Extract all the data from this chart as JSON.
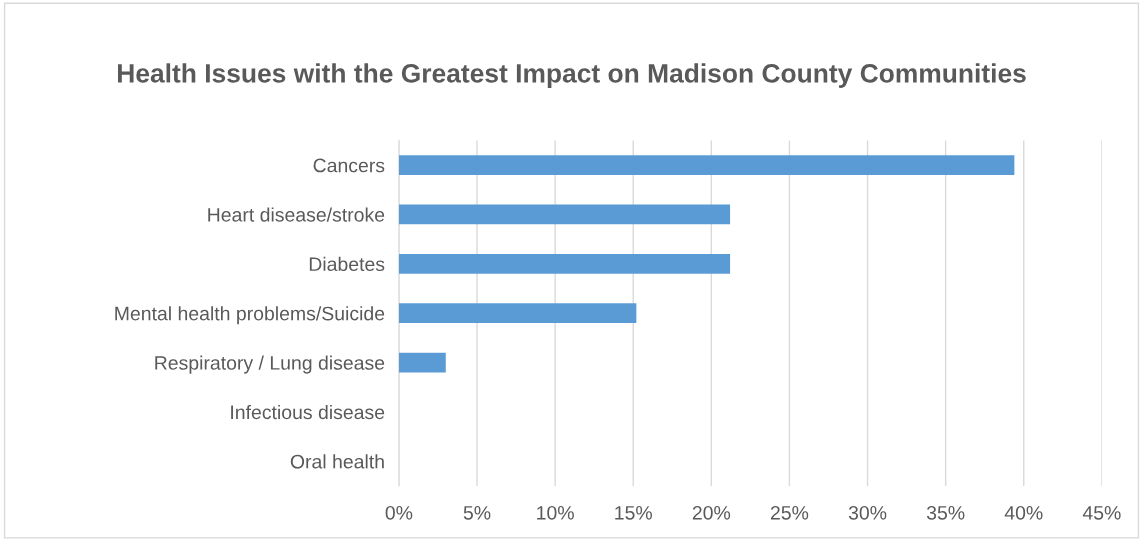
{
  "chart_data": {
    "type": "bar",
    "orientation": "horizontal",
    "title": "Health Issues with the Greatest Impact on Madison County Communities",
    "categories": [
      "Cancers",
      "Heart disease/stroke",
      "Diabetes",
      "Mental health problems/Suicide",
      "Respiratory / Lung disease",
      "Infectious disease",
      "Oral health"
    ],
    "values": [
      39.4,
      21.2,
      21.2,
      15.2,
      3.0,
      0,
      0
    ],
    "color": "#5b9bd5",
    "xlim": [
      0,
      45
    ],
    "xticks": [
      {
        "value": 0,
        "label": "0%"
      },
      {
        "value": 5,
        "label": "5%"
      },
      {
        "value": 10,
        "label": "10%"
      },
      {
        "value": 15,
        "label": "15%"
      },
      {
        "value": 20,
        "label": "20%"
      },
      {
        "value": 25,
        "label": "25%"
      },
      {
        "value": 30,
        "label": "30%"
      },
      {
        "value": 35,
        "label": "35%"
      },
      {
        "value": 40,
        "label": "40%"
      },
      {
        "value": 45,
        "label": "45%"
      }
    ],
    "grid": "x",
    "legend": false
  }
}
